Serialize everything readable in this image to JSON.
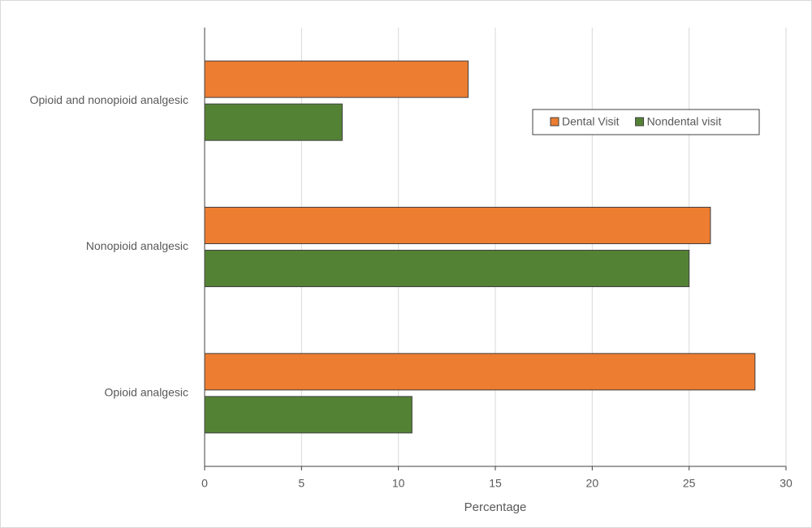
{
  "chart_data": {
    "type": "hbar",
    "categories": [
      "Opioid and nonopioid analgesic",
      "Nonopioid analgesic",
      "Opioid analgesic"
    ],
    "series": [
      {
        "name": "Dental Visit",
        "color": "#ed7d31",
        "values": [
          13.6,
          26.1,
          28.4
        ]
      },
      {
        "name": "Nondental visit",
        "color": "#548235",
        "values": [
          7.1,
          25.0,
          10.7
        ]
      }
    ],
    "xlabel": "Percentage",
    "xlim": [
      0,
      30
    ],
    "xticks": [
      0,
      5,
      10,
      15,
      20,
      25,
      30
    ],
    "grid": true,
    "legend": "upper right"
  }
}
